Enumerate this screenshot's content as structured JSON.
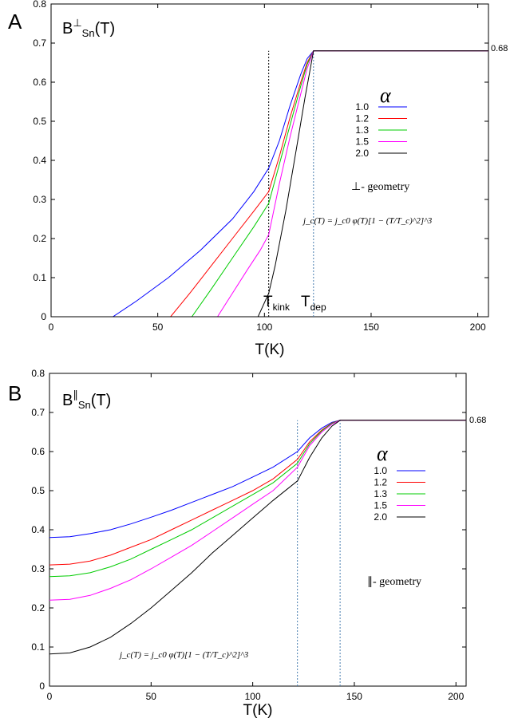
{
  "chart_data": [
    {
      "type": "line",
      "panel_label": "A",
      "title_main": "B",
      "title_sup": "⊥",
      "title_sub": "Sn",
      "title_tail": "(T)",
      "xlabel": "T(K)",
      "ylabel": "",
      "xlim": [
        0,
        205
      ],
      "ylim": [
        0,
        0.8
      ],
      "xticks": [
        0,
        50,
        100,
        150,
        200
      ],
      "yticks": [
        0,
        0.1,
        0.2,
        0.3,
        0.4,
        0.5,
        0.6,
        0.7,
        0.8
      ],
      "grid": false,
      "legend_title": "α",
      "legend_position": "right",
      "right_label": "0.68",
      "annotations": {
        "geometry": "⊥- geometry",
        "formula": "j_c(T) = j_c0 φ(T)[1 − (T/T_c)^2]^3",
        "t_kink_main": "T",
        "t_kink_sub": "kink",
        "t_dep_main": "T",
        "t_dep_sub": "dep"
      },
      "vlines": [
        {
          "x": 102,
          "color": "#000000"
        },
        {
          "x": 123,
          "color": "#4a7fb0"
        }
      ],
      "series": [
        {
          "name": "1.0",
          "color": "#0000ff",
          "points": [
            [
              0,
              0
            ],
            [
              29,
              0
            ],
            [
              40,
              0.04
            ],
            [
              55,
              0.1
            ],
            [
              70,
              0.17
            ],
            [
              85,
              0.25
            ],
            [
              95,
              0.32
            ],
            [
              102,
              0.38
            ],
            [
              107,
              0.45
            ],
            [
              112,
              0.54
            ],
            [
              117,
              0.62
            ],
            [
              120,
              0.66
            ],
            [
              123,
              0.68
            ],
            [
              205,
              0.68
            ]
          ]
        },
        {
          "name": "1.2",
          "color": "#ff0000",
          "points": [
            [
              0,
              0
            ],
            [
              56,
              0
            ],
            [
              65,
              0.06
            ],
            [
              75,
              0.13
            ],
            [
              85,
              0.2
            ],
            [
              95,
              0.27
            ],
            [
              102,
              0.32
            ],
            [
              107,
              0.41
            ],
            [
              112,
              0.51
            ],
            [
              117,
              0.6
            ],
            [
              120,
              0.65
            ],
            [
              123,
              0.68
            ],
            [
              205,
              0.68
            ]
          ]
        },
        {
          "name": "1.3",
          "color": "#00cc00",
          "points": [
            [
              0,
              0
            ],
            [
              66,
              0
            ],
            [
              75,
              0.07
            ],
            [
              85,
              0.15
            ],
            [
              95,
              0.23
            ],
            [
              102,
              0.29
            ],
            [
              107,
              0.39
            ],
            [
              112,
              0.49
            ],
            [
              117,
              0.59
            ],
            [
              120,
              0.645
            ],
            [
              123,
              0.68
            ],
            [
              205,
              0.68
            ]
          ]
        },
        {
          "name": "1.5",
          "color": "#ff00ff",
          "points": [
            [
              0,
              0
            ],
            [
              78,
              0
            ],
            [
              85,
              0.06
            ],
            [
              92,
              0.12
            ],
            [
              98,
              0.17
            ],
            [
              102,
              0.21
            ],
            [
              107,
              0.34
            ],
            [
              112,
              0.46
            ],
            [
              117,
              0.57
            ],
            [
              120,
              0.635
            ],
            [
              123,
              0.68
            ],
            [
              205,
              0.68
            ]
          ]
        },
        {
          "name": "2.0",
          "color": "#000000",
          "points": [
            [
              0,
              0
            ],
            [
              97,
              0
            ],
            [
              102,
              0.06
            ],
            [
              105,
              0.13
            ],
            [
              110,
              0.27
            ],
            [
              115,
              0.43
            ],
            [
              119,
              0.56
            ],
            [
              121,
              0.62
            ],
            [
              123,
              0.68
            ],
            [
              205,
              0.68
            ]
          ]
        }
      ]
    },
    {
      "type": "line",
      "panel_label": "B",
      "title_main": "B",
      "title_sup": "∥",
      "title_sub": "Sn",
      "title_tail": "(T)",
      "xlabel": "T(K)",
      "ylabel": "",
      "xlim": [
        0,
        205
      ],
      "ylim": [
        0,
        0.8
      ],
      "xticks": [
        0,
        50,
        100,
        150,
        200
      ],
      "yticks": [
        0,
        0.1,
        0.2,
        0.3,
        0.4,
        0.5,
        0.6,
        0.7,
        0.8
      ],
      "grid": false,
      "legend_title": "α",
      "legend_position": "right",
      "right_label": "0.68",
      "annotations": {
        "geometry": "∥- geometry",
        "formula": "j_c(T) = j_c0 φ(T)[1 − (T/T_c)^2]^3"
      },
      "vlines": [
        {
          "x": 122,
          "color": "#4a7fb0"
        },
        {
          "x": 143,
          "color": "#4a7fb0"
        }
      ],
      "series": [
        {
          "name": "1.0",
          "color": "#0000ff",
          "points": [
            [
              0,
              0.38
            ],
            [
              10,
              0.382
            ],
            [
              20,
              0.39
            ],
            [
              30,
              0.4
            ],
            [
              40,
              0.415
            ],
            [
              50,
              0.432
            ],
            [
              60,
              0.45
            ],
            [
              70,
              0.47
            ],
            [
              80,
              0.49
            ],
            [
              90,
              0.51
            ],
            [
              100,
              0.535
            ],
            [
              110,
              0.56
            ],
            [
              122,
              0.6
            ],
            [
              128,
              0.635
            ],
            [
              134,
              0.66
            ],
            [
              139,
              0.675
            ],
            [
              143,
              0.68
            ],
            [
              205,
              0.68
            ]
          ]
        },
        {
          "name": "1.2",
          "color": "#ff0000",
          "points": [
            [
              0,
              0.31
            ],
            [
              10,
              0.312
            ],
            [
              20,
              0.32
            ],
            [
              30,
              0.335
            ],
            [
              40,
              0.355
            ],
            [
              50,
              0.375
            ],
            [
              60,
              0.4
            ],
            [
              70,
              0.425
            ],
            [
              80,
              0.45
            ],
            [
              90,
              0.475
            ],
            [
              100,
              0.5
            ],
            [
              110,
              0.53
            ],
            [
              122,
              0.58
            ],
            [
              128,
              0.625
            ],
            [
              134,
              0.655
            ],
            [
              139,
              0.673
            ],
            [
              143,
              0.68
            ],
            [
              205,
              0.68
            ]
          ]
        },
        {
          "name": "1.3",
          "color": "#00cc00",
          "points": [
            [
              0,
              0.28
            ],
            [
              10,
              0.282
            ],
            [
              20,
              0.29
            ],
            [
              30,
              0.305
            ],
            [
              40,
              0.325
            ],
            [
              50,
              0.35
            ],
            [
              60,
              0.375
            ],
            [
              70,
              0.4
            ],
            [
              80,
              0.43
            ],
            [
              90,
              0.46
            ],
            [
              100,
              0.49
            ],
            [
              110,
              0.52
            ],
            [
              122,
              0.57
            ],
            [
              128,
              0.62
            ],
            [
              134,
              0.653
            ],
            [
              139,
              0.672
            ],
            [
              143,
              0.68
            ],
            [
              205,
              0.68
            ]
          ]
        },
        {
          "name": "1.5",
          "color": "#ff00ff",
          "points": [
            [
              0,
              0.22
            ],
            [
              10,
              0.222
            ],
            [
              20,
              0.232
            ],
            [
              30,
              0.25
            ],
            [
              40,
              0.272
            ],
            [
              50,
              0.3
            ],
            [
              60,
              0.33
            ],
            [
              70,
              0.36
            ],
            [
              80,
              0.395
            ],
            [
              90,
              0.43
            ],
            [
              100,
              0.465
            ],
            [
              110,
              0.5
            ],
            [
              122,
              0.56
            ],
            [
              128,
              0.615
            ],
            [
              134,
              0.65
            ],
            [
              139,
              0.67
            ],
            [
              143,
              0.68
            ],
            [
              205,
              0.68
            ]
          ]
        },
        {
          "name": "2.0",
          "color": "#000000",
          "points": [
            [
              0,
              0.082
            ],
            [
              10,
              0.085
            ],
            [
              20,
              0.1
            ],
            [
              30,
              0.125
            ],
            [
              40,
              0.16
            ],
            [
              50,
              0.2
            ],
            [
              60,
              0.245
            ],
            [
              70,
              0.29
            ],
            [
              80,
              0.34
            ],
            [
              90,
              0.385
            ],
            [
              100,
              0.43
            ],
            [
              110,
              0.475
            ],
            [
              122,
              0.525
            ],
            [
              128,
              0.585
            ],
            [
              134,
              0.635
            ],
            [
              139,
              0.665
            ],
            [
              143,
              0.68
            ],
            [
              205,
              0.68
            ]
          ]
        }
      ]
    }
  ]
}
